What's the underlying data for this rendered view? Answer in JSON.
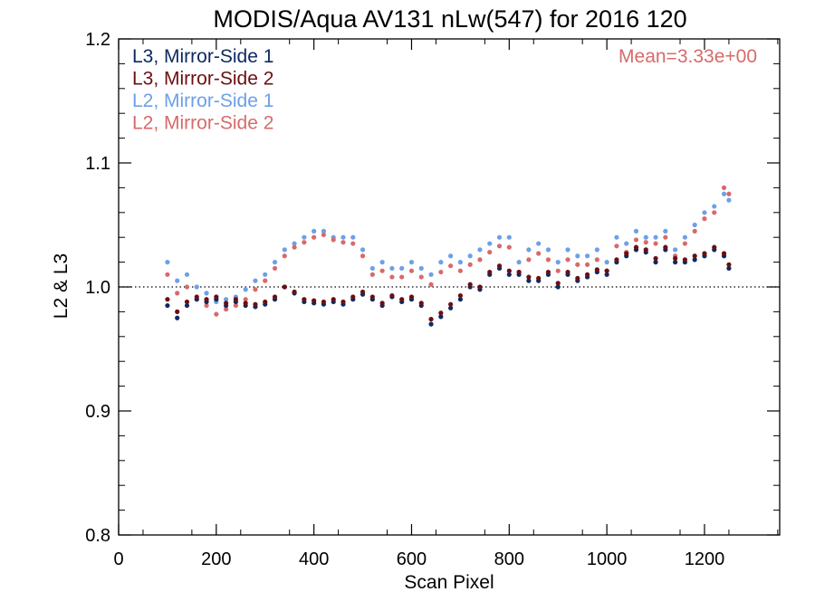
{
  "chart_data": {
    "type": "scatter",
    "title": "MODIS/Aqua AV131 nLw(547) for 2016 120",
    "xlabel": "Scan Pixel",
    "ylabel": "L2 & L3",
    "xlim": [
      0,
      1354
    ],
    "ylim": [
      0.8,
      1.2
    ],
    "x_ticks": [
      0,
      200,
      400,
      600,
      800,
      1000,
      1200
    ],
    "x_tick_labels": [
      "0",
      "200",
      "400",
      "600",
      "800",
      "1000",
      "1200"
    ],
    "y_ticks": [
      0.8,
      0.9,
      1.0,
      1.1,
      1.2
    ],
    "y_tick_labels": [
      "0.8",
      "0.9",
      "1.0",
      "1.1",
      "1.2"
    ],
    "reference_line": 1.0,
    "annotation": "Mean=3.33e+00",
    "legend_position": "top-left",
    "series": [
      {
        "name": "L3, Mirror-Side 1",
        "color": "#0d2a63",
        "x": [
          100,
          120,
          140,
          160,
          180,
          200,
          220,
          240,
          260,
          280,
          300,
          320,
          340,
          360,
          380,
          400,
          420,
          440,
          460,
          480,
          500,
          520,
          540,
          560,
          580,
          600,
          620,
          640,
          660,
          680,
          700,
          720,
          740,
          760,
          780,
          800,
          820,
          840,
          860,
          880,
          900,
          920,
          940,
          960,
          980,
          1000,
          1020,
          1040,
          1060,
          1080,
          1100,
          1120,
          1140,
          1160,
          1180,
          1200,
          1220,
          1240,
          1250
        ],
        "y": [
          0.985,
          0.975,
          0.985,
          0.99,
          0.988,
          0.99,
          0.985,
          0.988,
          0.985,
          0.984,
          0.986,
          0.99,
          1.0,
          0.995,
          0.988,
          0.987,
          0.986,
          0.988,
          0.986,
          0.99,
          0.994,
          0.99,
          0.985,
          0.992,
          0.988,
          0.99,
          0.985,
          0.97,
          0.976,
          0.983,
          0.99,
          1.0,
          0.998,
          1.01,
          1.015,
          1.01,
          1.01,
          1.005,
          1.005,
          1.01,
          1.0,
          1.01,
          1.005,
          1.008,
          1.012,
          1.01,
          1.02,
          1.025,
          1.03,
          1.028,
          1.02,
          1.03,
          1.02,
          1.02,
          1.022,
          1.025,
          1.03,
          1.025,
          1.015
        ]
      },
      {
        "name": "L3, Mirror-Side 2",
        "color": "#6b0f12",
        "x": [
          100,
          120,
          140,
          160,
          180,
          200,
          220,
          240,
          260,
          280,
          300,
          320,
          340,
          360,
          380,
          400,
          420,
          440,
          460,
          480,
          500,
          520,
          540,
          560,
          580,
          600,
          620,
          640,
          660,
          680,
          700,
          720,
          740,
          760,
          780,
          800,
          820,
          840,
          860,
          880,
          900,
          920,
          940,
          960,
          980,
          1000,
          1020,
          1040,
          1060,
          1080,
          1100,
          1120,
          1140,
          1160,
          1180,
          1200,
          1220,
          1240,
          1250
        ],
        "y": [
          0.99,
          0.98,
          0.988,
          0.992,
          0.99,
          0.992,
          0.987,
          0.99,
          0.987,
          0.986,
          0.988,
          0.992,
          1.0,
          0.996,
          0.99,
          0.989,
          0.988,
          0.99,
          0.988,
          0.992,
          0.996,
          0.992,
          0.987,
          0.993,
          0.99,
          0.992,
          0.987,
          0.974,
          0.979,
          0.986,
          0.993,
          1.002,
          1.0,
          1.012,
          1.017,
          1.013,
          1.012,
          1.008,
          1.007,
          1.012,
          1.003,
          1.012,
          1.007,
          1.01,
          1.014,
          1.013,
          1.022,
          1.027,
          1.032,
          1.03,
          1.023,
          1.032,
          1.023,
          1.022,
          1.025,
          1.027,
          1.032,
          1.027,
          1.018
        ]
      },
      {
        "name": "L2, Mirror-Side 1",
        "color": "#6ca0e8",
        "x": [
          100,
          120,
          140,
          160,
          180,
          200,
          220,
          240,
          260,
          280,
          300,
          320,
          340,
          360,
          380,
          400,
          420,
          440,
          460,
          480,
          500,
          520,
          540,
          560,
          580,
          600,
          620,
          640,
          660,
          680,
          700,
          720,
          740,
          760,
          780,
          800,
          820,
          840,
          860,
          880,
          900,
          920,
          940,
          960,
          980,
          1000,
          1020,
          1040,
          1060,
          1080,
          1100,
          1120,
          1140,
          1160,
          1180,
          1200,
          1220,
          1240,
          1250
        ],
        "y": [
          1.02,
          1.005,
          1.01,
          1.0,
          0.995,
          0.988,
          0.99,
          0.992,
          0.998,
          1.005,
          1.01,
          1.02,
          1.03,
          1.035,
          1.04,
          1.045,
          1.045,
          1.04,
          1.04,
          1.04,
          1.03,
          1.015,
          1.02,
          1.015,
          1.015,
          1.02,
          1.015,
          1.01,
          1.02,
          1.025,
          1.02,
          1.025,
          1.03,
          1.035,
          1.04,
          1.04,
          1.02,
          1.03,
          1.035,
          1.03,
          1.02,
          1.03,
          1.025,
          1.025,
          1.03,
          1.02,
          1.04,
          1.035,
          1.045,
          1.04,
          1.04,
          1.045,
          1.03,
          1.04,
          1.05,
          1.06,
          1.065,
          1.075,
          1.07
        ]
      },
      {
        "name": "L2, Mirror-Side 2",
        "color": "#d86a6a",
        "x": [
          100,
          120,
          140,
          160,
          180,
          200,
          220,
          240,
          260,
          280,
          300,
          320,
          340,
          360,
          380,
          400,
          420,
          440,
          460,
          480,
          500,
          520,
          540,
          560,
          580,
          600,
          620,
          640,
          660,
          680,
          700,
          720,
          740,
          760,
          780,
          800,
          820,
          840,
          860,
          880,
          900,
          920,
          940,
          960,
          980,
          1000,
          1020,
          1040,
          1060,
          1080,
          1100,
          1120,
          1140,
          1160,
          1180,
          1200,
          1220,
          1240,
          1250
        ],
        "y": [
          1.01,
          0.995,
          1.0,
          0.99,
          0.985,
          0.978,
          0.982,
          0.985,
          0.99,
          0.998,
          1.005,
          1.015,
          1.025,
          1.032,
          1.036,
          1.04,
          1.042,
          1.038,
          1.036,
          1.035,
          1.025,
          1.01,
          1.013,
          1.008,
          1.008,
          1.013,
          1.008,
          1.002,
          1.012,
          1.017,
          1.013,
          1.018,
          1.022,
          1.028,
          1.033,
          1.032,
          1.012,
          1.022,
          1.027,
          1.022,
          1.013,
          1.022,
          1.018,
          1.018,
          1.022,
          1.013,
          1.033,
          1.028,
          1.038,
          1.036,
          1.035,
          1.04,
          1.025,
          1.035,
          1.045,
          1.055,
          1.06,
          1.08,
          1.075
        ]
      }
    ]
  }
}
